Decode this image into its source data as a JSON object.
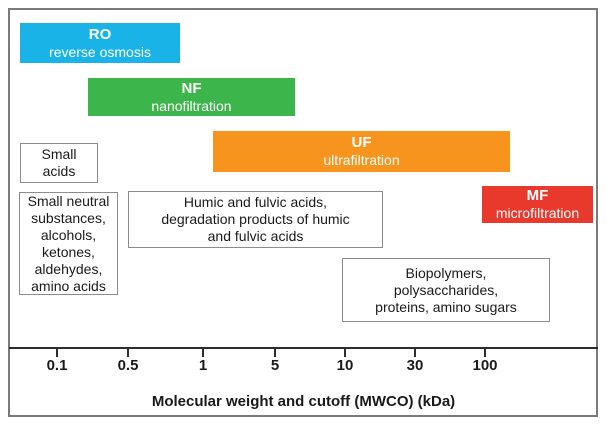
{
  "figure": {
    "bars": [
      {
        "abbr": "RO",
        "name": "reverse osmosis",
        "color": "#1ab3e8"
      },
      {
        "abbr": "NF",
        "name": "nanofiltration",
        "color": "#3cb54a"
      },
      {
        "abbr": "UF",
        "name": "ultrafiltration",
        "color": "#f7941d"
      },
      {
        "abbr": "MF",
        "name": "microfiltration",
        "color": "#e9392d"
      }
    ],
    "boxes": [
      {
        "text": "Small\nacids"
      },
      {
        "text": "Small neutral\nsubstances,\nalcohols,\nketones,\naldehydes,\namino acids"
      },
      {
        "text": "Humic and fulvic acids,\ndegradation products of humic\nand fulvic acids"
      },
      {
        "text": "Biopolymers,\npolysaccharides,\nproteins, amino sugars"
      }
    ],
    "axis": {
      "ticks": [
        "0.1",
        "0.5",
        "1",
        "5",
        "10",
        "30",
        "100"
      ],
      "title": "Molecular weight and cutoff (MWCO) (kDa)"
    },
    "colors": {
      "frame_border": "#7a7a7a",
      "axis_line": "#2d2d2d",
      "box_border": "#8c8c8c",
      "text": "#1a1a1a",
      "background": "#ffffff"
    }
  },
  "chart_data": {
    "type": "bar",
    "subtype": "horizontal-range-bars",
    "title": "",
    "xlabel": "Molecular weight and cutoff (MWCO) (kDa)",
    "x_ticks": [
      "0.1",
      "0.5",
      "1",
      "5",
      "10",
      "30",
      "100"
    ],
    "x_scale": "log-like, ticks evenly spaced",
    "grid": false,
    "legend": false,
    "series": [
      {
        "name": "RO (reverse osmosis)",
        "color": "#1ab3e8",
        "range_kda": [
          0.04,
          0.85
        ]
      },
      {
        "name": "NF (nanofiltration)",
        "color": "#3cb54a",
        "range_kda": [
          0.3,
          6
        ]
      },
      {
        "name": "UF (ultrafiltration)",
        "color": "#f7941d",
        "range_kda": [
          1.1,
          150
        ]
      },
      {
        "name": "MF (microfiltration)",
        "color": "#e9392d",
        "range_kda": [
          100,
          500
        ]
      }
    ],
    "annotations": [
      {
        "text": "Small acids",
        "range_kda": [
          0.05,
          0.33
        ]
      },
      {
        "text": "Small neutral substances, alcohols, ketones, aldehydes, amino acids",
        "range_kda": [
          0.05,
          0.45
        ]
      },
      {
        "text": "Humic and fulvic acids, degradation products of humic and fulvic acids",
        "range_kda": [
          0.5,
          20
        ]
      },
      {
        "text": "Biopolymers, polysaccharides, proteins, amino sugars",
        "range_kda": [
          10,
          300
        ]
      }
    ]
  }
}
